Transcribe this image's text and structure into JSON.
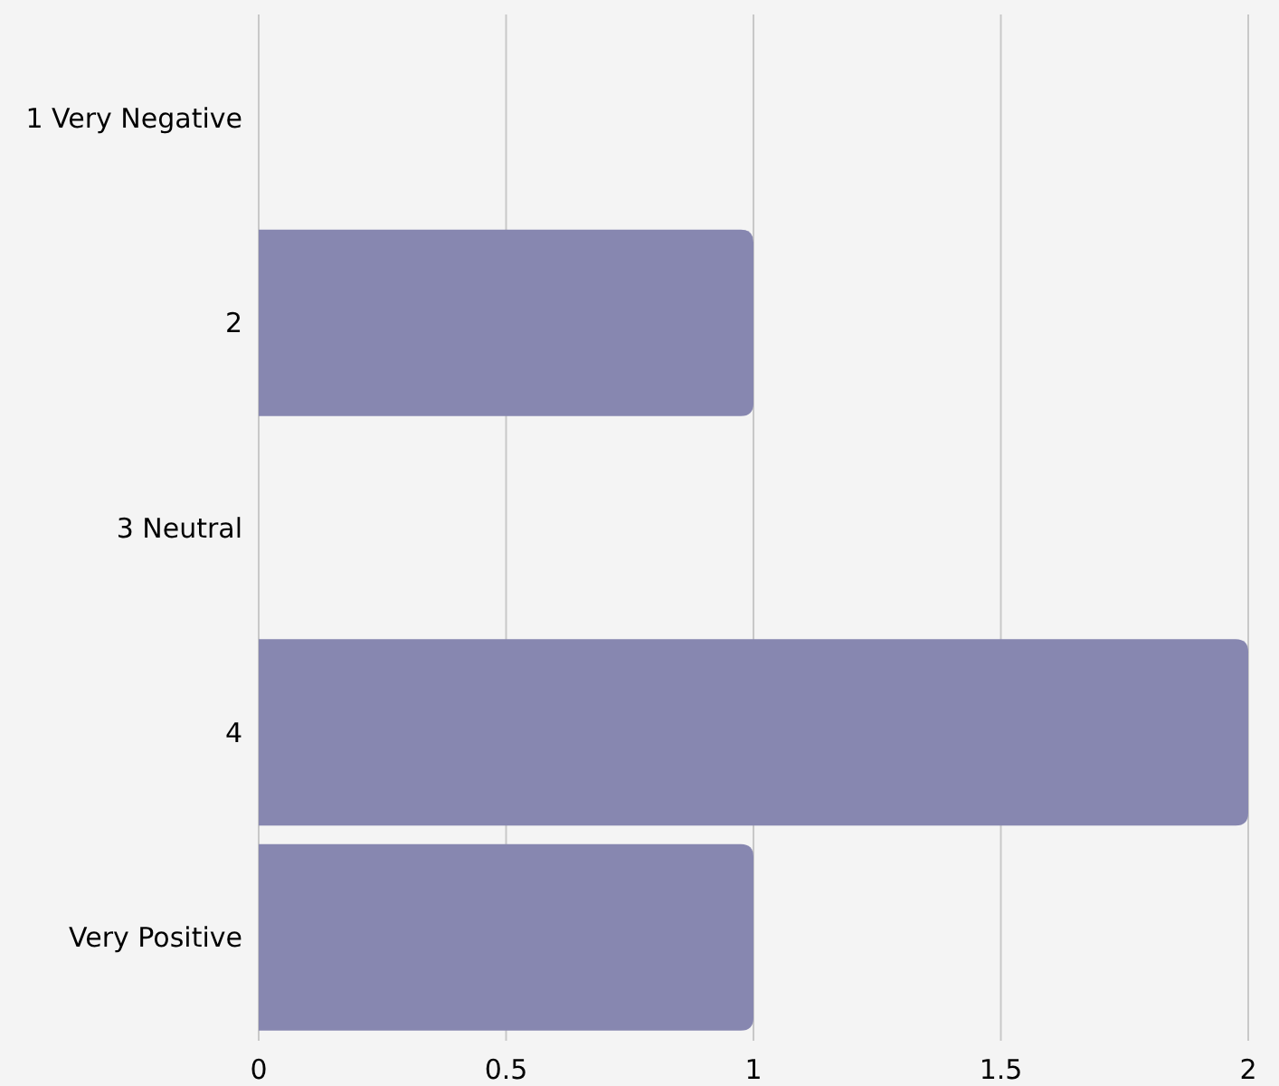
{
  "chart_data": {
    "type": "bar",
    "orientation": "horizontal",
    "categories": [
      "1 Very Negative",
      "2",
      "3 Neutral",
      "4",
      "Very Positive"
    ],
    "values": [
      0,
      1,
      0,
      2,
      1
    ],
    "color": "#8787b0",
    "xlim": [
      0,
      2
    ],
    "xticks": [
      0,
      0.5,
      1,
      1.5,
      2
    ],
    "grid": "x"
  }
}
